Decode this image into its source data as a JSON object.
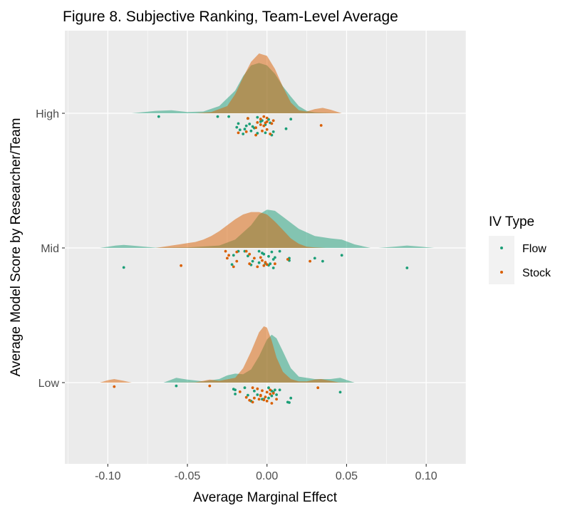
{
  "chart_data": {
    "type": "ridgeline-jitter",
    "title": "Figure 8. Subjective Ranking, Team-Level Average",
    "xlabel": "Average Marginal Effect",
    "ylabel": "Average Model Score by Researcher/Team",
    "xlim": [
      -0.127,
      0.125
    ],
    "x_ticks": [
      -0.1,
      -0.05,
      0.0,
      0.05,
      0.1
    ],
    "x_tick_labels": [
      "-0.10",
      "-0.05",
      "0.00",
      "0.05",
      "0.10"
    ],
    "categories": [
      "High",
      "Mid",
      "Low"
    ],
    "grid": true,
    "legend": {
      "title": "IV Type",
      "position": "right",
      "entries": [
        "Flow",
        "Stock"
      ]
    },
    "colors": {
      "Flow": "#1b9e77",
      "Stock": "#d95f02",
      "panel": "#ebebeb",
      "grid": "#ffffff"
    },
    "series": [
      {
        "name": "Flow",
        "points": [
          {
            "category": "High",
            "x": [
              -0.068,
              -0.031,
              -0.024,
              -0.012,
              -0.006,
              -0.004,
              0.001,
              0.002,
              0.015,
              -0.018,
              -0.011,
              -0.013,
              -0.009,
              -0.008,
              -0.019,
              -0.017,
              -0.014,
              -0.01,
              0.004,
              -0.001,
              -0.006,
              0.003,
              -0.015,
              -0.001,
              0.012,
              -0.003
            ],
            "jitter": [
              0.97,
              0.97,
              0.97,
              0.92,
              0.95,
              0.83,
              0.89,
              0.8,
              0.9,
              0.78,
              0.77,
              0.72,
              0.7,
              0.66,
              0.68,
              0.61,
              0.63,
              0.58,
              0.56,
              0.53,
              0.52,
              0.47,
              0.5,
              0.75,
              0.64,
              0.86
            ]
          },
          {
            "category": "Mid",
            "x": [
              -0.018,
              -0.014,
              -0.005,
              -0.003,
              0.003,
              0.008,
              -0.002,
              -0.021,
              -0.012,
              0.001,
              0.005,
              0.014,
              0.03,
              0.047,
              0.035,
              0.004,
              0.014,
              -0.009,
              -0.005,
              -0.001,
              0.002,
              -0.022,
              0.001,
              0.004,
              -0.09,
              0.088,
              -0.01
            ],
            "jitter": [
              0.97,
              0.97,
              0.97,
              0.92,
              0.95,
              0.97,
              0.89,
              0.86,
              0.84,
              0.83,
              0.8,
              0.78,
              0.78,
              0.86,
              0.7,
              0.75,
              0.72,
              0.7,
              0.66,
              0.64,
              0.63,
              0.61,
              0.59,
              0.52,
              0.53,
              0.52,
              0.6
            ]
          },
          {
            "category": "Low",
            "x": [
              -0.057,
              -0.014,
              -0.021,
              0.001,
              0.005,
              0.008,
              -0.02,
              0.003,
              -0.008,
              0.004,
              -0.02,
              0.006,
              -0.006,
              0.003,
              0.001,
              -0.002,
              -0.003,
              0.015,
              -0.01,
              0.014,
              0.013,
              0.046,
              -0.012
            ],
            "jitter": [
              0.97,
              0.92,
              0.88,
              0.92,
              0.86,
              0.86,
              0.86,
              0.83,
              0.83,
              0.8,
              0.75,
              0.73,
              0.73,
              0.7,
              0.64,
              0.61,
              0.61,
              0.64,
              0.56,
              0.52,
              0.53,
              0.8,
              0.72
            ]
          }
        ],
        "density": [
          {
            "category": "High",
            "x": [
              -0.085,
              -0.07,
              -0.06,
              -0.05,
              -0.04,
              -0.03,
              -0.02,
              -0.015,
              -0.01,
              -0.005,
              0.0,
              0.005,
              0.01,
              0.015,
              0.02,
              0.025,
              0.03,
              0.035,
              0.04,
              0.047
            ],
            "y": [
              0.0,
              0.04,
              0.05,
              0.02,
              0.03,
              0.12,
              0.38,
              0.62,
              0.8,
              0.84,
              0.8,
              0.66,
              0.45,
              0.28,
              0.12,
              0.04,
              0.015,
              0.01,
              0.005,
              0.0
            ]
          },
          {
            "category": "Mid",
            "x": [
              -0.105,
              -0.095,
              -0.09,
              -0.085,
              -0.07,
              -0.05,
              -0.03,
              -0.02,
              -0.01,
              -0.005,
              0.0,
              0.005,
              0.01,
              0.02,
              0.03,
              0.04,
              0.047,
              0.055,
              0.065,
              0.07,
              0.08,
              0.088,
              0.097,
              0.105
            ],
            "y": [
              0.0,
              0.04,
              0.05,
              0.04,
              0.005,
              0.01,
              0.04,
              0.14,
              0.38,
              0.56,
              0.64,
              0.62,
              0.52,
              0.32,
              0.2,
              0.16,
              0.14,
              0.06,
              0.0,
              0.0,
              0.02,
              0.04,
              0.02,
              0.0
            ]
          },
          {
            "category": "Low",
            "x": [
              -0.065,
              -0.057,
              -0.05,
              -0.04,
              -0.03,
              -0.025,
              -0.02,
              -0.015,
              -0.01,
              -0.005,
              0.0,
              0.003,
              0.006,
              0.01,
              0.015,
              0.02,
              0.03,
              0.04,
              0.046,
              0.055
            ],
            "y": [
              0.0,
              0.08,
              0.05,
              0.02,
              0.06,
              0.12,
              0.15,
              0.14,
              0.22,
              0.44,
              0.72,
              0.8,
              0.74,
              0.52,
              0.24,
              0.1,
              0.06,
              0.06,
              0.08,
              0.0
            ]
          }
        ]
      },
      {
        "name": "Stock",
        "points": [
          {
            "category": "High",
            "x": [
              -0.012,
              -0.002,
              0.0,
              -0.004,
              0.004,
              0.0,
              -0.006,
              -0.001,
              0.003,
              -0.004,
              -0.002,
              -0.007,
              0.034,
              -0.013,
              -0.018,
              -0.007,
              0.002,
              0.0,
              -0.003
            ],
            "jitter": [
              0.92,
              0.97,
              0.93,
              0.9,
              0.86,
              0.83,
              0.81,
              0.8,
              0.78,
              0.75,
              0.72,
              0.67,
              0.73,
              0.56,
              0.53,
              0.47,
              0.5,
              0.62,
              0.58
            ]
          },
          {
            "category": "Mid",
            "x": [
              -0.026,
              -0.019,
              -0.013,
              -0.011,
              -0.024,
              -0.025,
              -0.019,
              -0.008,
              -0.003,
              -0.011,
              0.0,
              -0.006,
              -0.002,
              0.013,
              0.027,
              0.005,
              -0.054,
              -0.021,
              -0.004,
              -0.001
            ],
            "jitter": [
              0.97,
              0.95,
              0.97,
              0.89,
              0.86,
              0.78,
              0.7,
              0.78,
              0.72,
              0.63,
              0.61,
              0.55,
              0.58,
              0.75,
              0.7,
              0.63,
              0.58,
              0.55,
              0.8,
              0.67
            ]
          },
          {
            "category": "Low",
            "x": [
              -0.096,
              -0.036,
              -0.009,
              -0.006,
              -0.003,
              0.002,
              0.004,
              -0.004,
              0.032,
              0.002,
              -0.001,
              -0.008,
              -0.004,
              0.006,
              -0.002,
              0.0,
              -0.011,
              -0.009,
              0.003,
              -0.013,
              -0.017,
              0.0,
              -0.005
            ],
            "jitter": [
              0.95,
              0.97,
              0.92,
              0.89,
              0.84,
              0.86,
              0.77,
              0.7,
              0.92,
              0.75,
              0.67,
              0.64,
              0.72,
              0.61,
              0.59,
              0.56,
              0.58,
              0.53,
              0.5,
              0.66,
              0.81,
              0.8,
              0.61
            ]
          }
        ],
        "density": [
          {
            "category": "High",
            "x": [
              -0.045,
              -0.035,
              -0.025,
              -0.02,
              -0.015,
              -0.01,
              -0.005,
              0.0,
              0.005,
              0.01,
              0.015,
              0.02,
              0.025,
              0.03,
              0.035,
              0.04,
              0.047
            ],
            "y": [
              0.0,
              0.02,
              0.12,
              0.32,
              0.6,
              0.86,
              1.0,
              0.96,
              0.74,
              0.44,
              0.18,
              0.05,
              0.03,
              0.07,
              0.09,
              0.06,
              0.0
            ]
          },
          {
            "category": "Mid",
            "x": [
              -0.07,
              -0.06,
              -0.05,
              -0.045,
              -0.04,
              -0.035,
              -0.03,
              -0.025,
              -0.02,
              -0.015,
              -0.01,
              -0.005,
              0.0,
              0.005,
              0.01,
              0.015,
              0.02,
              0.025,
              0.03,
              0.037
            ],
            "y": [
              0.0,
              0.04,
              0.08,
              0.1,
              0.14,
              0.2,
              0.28,
              0.38,
              0.48,
              0.56,
              0.6,
              0.6,
              0.56,
              0.44,
              0.3,
              0.16,
              0.07,
              0.02,
              0.01,
              0.0
            ]
          },
          {
            "category": "Low",
            "x": [
              -0.105,
              -0.1,
              -0.096,
              -0.09,
              -0.085,
              -0.06,
              -0.045,
              -0.04,
              -0.036,
              -0.03,
              -0.02,
              -0.015,
              -0.01,
              -0.005,
              -0.002,
              0.0,
              0.003,
              0.006,
              0.01,
              0.015,
              0.02,
              0.025,
              0.03,
              0.034,
              0.04,
              0.045,
              0.055
            ],
            "y": [
              0.0,
              0.04,
              0.06,
              0.03,
              0.0,
              0.0,
              0.005,
              0.03,
              0.05,
              0.03,
              0.08,
              0.24,
              0.52,
              0.84,
              0.94,
              0.92,
              0.7,
              0.42,
              0.18,
              0.06,
              0.02,
              0.02,
              0.05,
              0.06,
              0.03,
              0.005,
              0.0
            ]
          }
        ]
      }
    ]
  }
}
